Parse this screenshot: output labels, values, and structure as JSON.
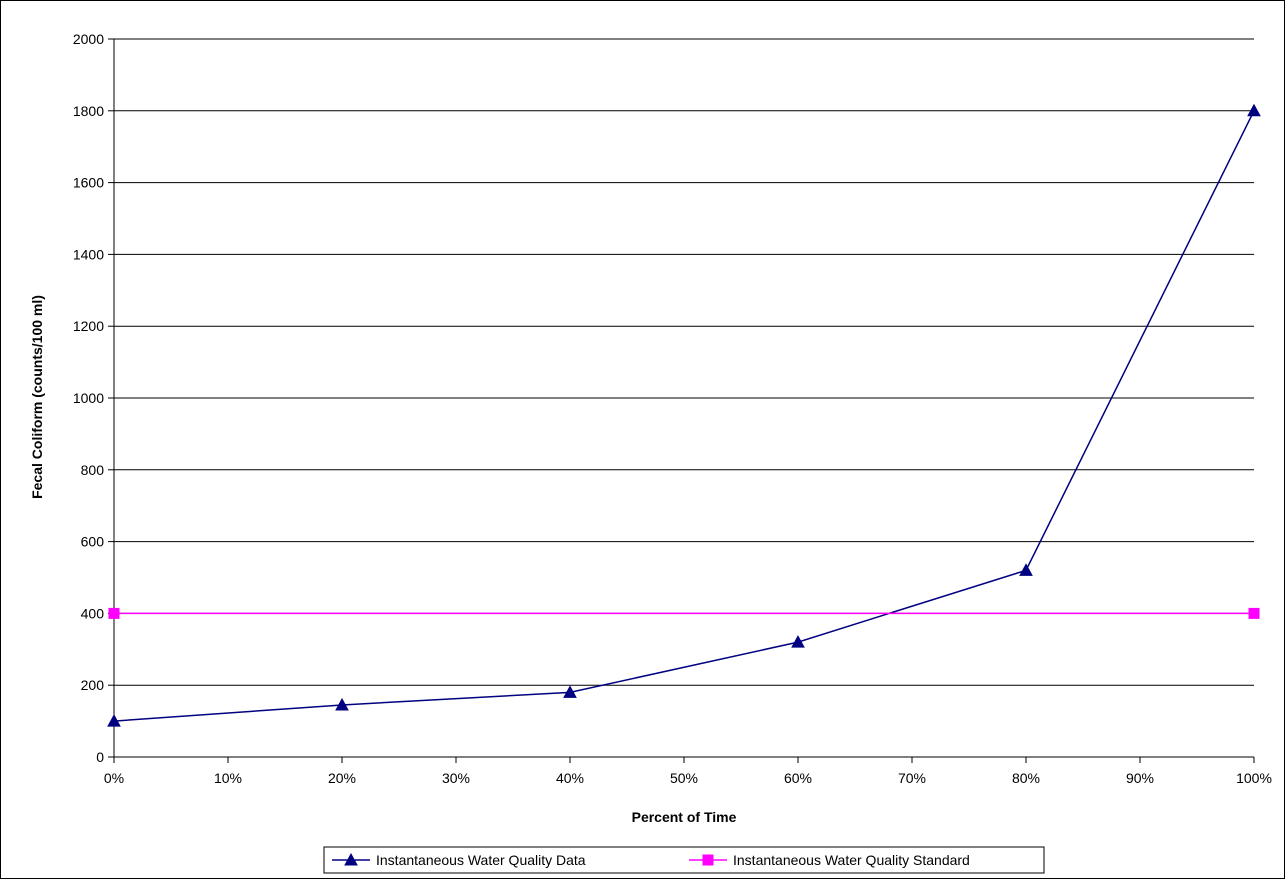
{
  "chart_data": {
    "type": "line",
    "xlabel": "Percent of Time",
    "ylabel": "Fecal Coliform (counts/100 ml)",
    "xlim": [
      0,
      100
    ],
    "ylim": [
      0,
      2000
    ],
    "x_ticks": [
      0,
      10,
      20,
      30,
      40,
      50,
      60,
      70,
      80,
      90,
      100
    ],
    "x_tick_labels": [
      "0%",
      "10%",
      "20%",
      "30%",
      "40%",
      "50%",
      "60%",
      "70%",
      "80%",
      "90%",
      "100%"
    ],
    "y_ticks": [
      0,
      200,
      400,
      600,
      800,
      1000,
      1200,
      1400,
      1600,
      1800,
      2000
    ],
    "y_tick_labels": [
      "0",
      "200",
      "400",
      "600",
      "800",
      "1000",
      "1200",
      "1400",
      "1600",
      "1800",
      "2000"
    ],
    "grid": "horizontal",
    "legend_position": "bottom",
    "series": [
      {
        "name": "Instantaneous Water Quality Data",
        "color": "#000080",
        "marker": "triangle",
        "x": [
          0,
          20,
          40,
          60,
          80,
          100
        ],
        "y": [
          100,
          145,
          180,
          320,
          520,
          1800
        ]
      },
      {
        "name": "Instantaneous Water Quality Standard",
        "color": "#FF00FF",
        "marker": "square",
        "x": [
          0,
          100
        ],
        "y": [
          400,
          400
        ]
      }
    ]
  }
}
